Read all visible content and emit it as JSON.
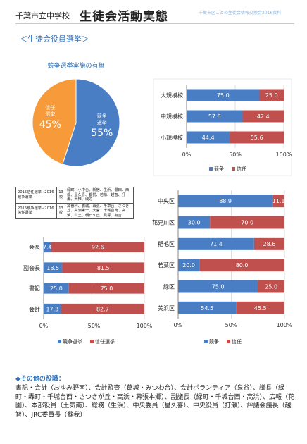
{
  "header": {
    "school": "千葉市立中学校",
    "title": "生徒会活動実態",
    "source": "千葉市区ごとの生徒会情報交換会2016資料"
  },
  "section_title": "＜生徒会役員選挙＞",
  "colors": {
    "competition": "#4a7ec4",
    "trust": "#c0504d",
    "pie_trust": "#f79a3a"
  },
  "chart_data": [
    {
      "id": "pie",
      "type": "pie",
      "title": "競争選挙実施の有無",
      "slices": [
        {
          "name": "競争選挙",
          "label1": "競争",
          "label2": "選挙",
          "value": 55,
          "value_label": "55%"
        },
        {
          "name": "信任選挙",
          "label1": "信任",
          "label2": "選挙",
          "value": 45,
          "value_label": "45%"
        }
      ]
    },
    {
      "id": "size",
      "type": "bar",
      "orientation": "horizontal",
      "stacked": true,
      "categories": [
        "大規模校",
        "中規模校",
        "小規模校"
      ],
      "series": [
        {
          "name": "競争",
          "values": [
            75.0,
            57.6,
            44.4
          ],
          "labels": [
            "75.0",
            "57.6",
            "44.4"
          ]
        },
        {
          "name": "信任",
          "values": [
            25.0,
            42.4,
            55.6
          ],
          "labels": [
            "25.0",
            "42.4",
            "55.6"
          ]
        }
      ],
      "xlim": [
        0,
        100
      ],
      "ticks": [
        "0%",
        "50%",
        "100%"
      ]
    },
    {
      "id": "ward",
      "type": "bar",
      "orientation": "horizontal",
      "stacked": true,
      "categories": [
        "中央区",
        "花見川区",
        "稲毛区",
        "若葉区",
        "緑区",
        "美浜区"
      ],
      "series": [
        {
          "name": "競争",
          "values": [
            88.9,
            30.0,
            71.4,
            20.0,
            75.0,
            54.5
          ],
          "labels": [
            "88.9",
            "30.0",
            "71.4",
            "20.0",
            "75.0",
            "54.5"
          ]
        },
        {
          "name": "信任",
          "values": [
            11.1,
            70.0,
            28.6,
            80.0,
            25.0,
            45.5
          ],
          "labels": [
            "11.1",
            "70.0",
            "28.6",
            "80.0",
            "25.0",
            "45.5"
          ]
        }
      ],
      "xlim": [
        0,
        100
      ],
      "ticks": [
        "0%",
        "50%",
        "100%"
      ]
    },
    {
      "id": "role",
      "type": "bar",
      "orientation": "horizontal",
      "stacked": true,
      "categories": [
        "会長",
        "副会長",
        "書記",
        "会計"
      ],
      "series": [
        {
          "name": "競争選挙",
          "values": [
            7.4,
            18.5,
            25.0,
            17.3
          ],
          "labels": [
            "7.4",
            "18.5",
            "25.0",
            "17.3"
          ]
        },
        {
          "name": "信任選挙",
          "values": [
            92.6,
            81.5,
            75.0,
            82.7
          ],
          "labels": [
            "92.6",
            "81.5",
            "75.0",
            "82.7"
          ]
        }
      ],
      "xlim": [
        0,
        100
      ],
      "ticks": [
        "0%",
        "50%",
        "100%"
      ]
    }
  ],
  "info_table": [
    {
      "period": "2015信任選挙→2016競争選挙",
      "count": "13校",
      "schools": "緑町、小中台、新宿、生浜、譽田、西都、星久喜、都賀、若松、越智、打瀬、大椎、磯辺"
    },
    {
      "period": "2015競争選挙→2016信任選挙",
      "count": "13校",
      "schools": "加曽利、鶴城、幕張、千草台、さつき丘、高洲第一、大宮、千城台南、高浜、山王、朝日ケ丘、貝塚、有吉"
    }
  ],
  "other": {
    "heading": "◆その他の役職：",
    "body": "書記・会計（おゆみ野南）、会計監査（葛城・みつわ台）、会計ボランティア（泉谷）、議長（緑町・轟町・千城台西・さつきが丘・高浜・幕張本郷）、副議長（緑町・千城台西・高浜）、広報（花園）、本部役員（土気南）、総務（生浜）、中央委員（星久喜）、中央役員（打瀬）、評議会議長（越智）、JRC委員長（蘇我）"
  }
}
